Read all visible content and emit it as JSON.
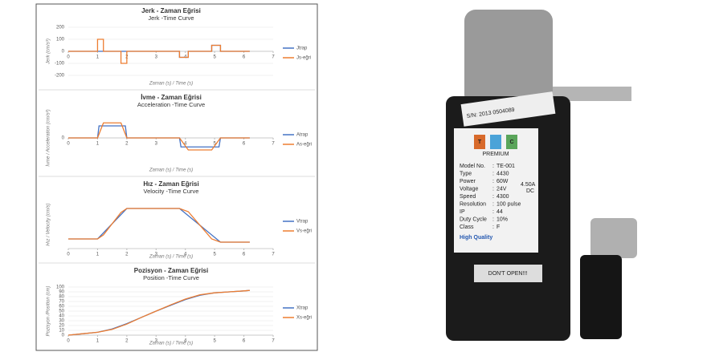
{
  "chart_data": [
    {
      "type": "line",
      "title": "Jerk - Zaman Eğrisi",
      "subtitle": "Jerk -Time Curve",
      "y_label": "Jerk (cm/s³)",
      "x_label": "Zaman (s) / Time (s)",
      "xlim": [
        0,
        7
      ],
      "xticks": [
        0,
        1,
        2,
        3,
        4,
        5,
        6,
        7
      ],
      "ylim": [
        -200,
        200
      ],
      "yticks": [
        -200,
        -100,
        0,
        100,
        200
      ],
      "series": [
        {
          "name": "Jtrap",
          "color": "#4472c4",
          "x": [
            0,
            3.8,
            3.8,
            4.1,
            4.1,
            4.9,
            4.9,
            5.2,
            5.2,
            6.2
          ],
          "values": [
            0,
            0,
            -50,
            -50,
            0,
            0,
            50,
            50,
            0,
            0
          ]
        },
        {
          "name": "Js-eğri",
          "color": "#ed7d31",
          "x": [
            0,
            1,
            1,
            1.2,
            1.2,
            1.8,
            1.8,
            2,
            2,
            3.8,
            3.8,
            4.1,
            4.1,
            4.9,
            4.9,
            5.2,
            5.2,
            6.2
          ],
          "values": [
            0,
            0,
            100,
            100,
            0,
            0,
            -100,
            -100,
            0,
            0,
            -50,
            -50,
            0,
            0,
            50,
            50,
            0,
            0
          ]
        }
      ]
    },
    {
      "type": "line",
      "title": "İvme - Zaman Eğrisi",
      "subtitle": "Acceleration -Time Curve",
      "y_label": "İvme / Acceleration (cm/s²)",
      "x_label": "Zaman (s) / Time (s)",
      "xlim": [
        0,
        7
      ],
      "xticks": [
        0,
        1,
        2,
        3,
        4,
        5,
        6,
        7
      ],
      "ylim": [
        -40,
        40
      ],
      "yticks": [
        0
      ],
      "series": [
        {
          "name": "Atrap",
          "color": "#4472c4",
          "x": [
            0,
            1,
            1.05,
            1.95,
            2,
            3.8,
            3.85,
            5.15,
            5.2,
            6.2
          ],
          "values": [
            0,
            0,
            20,
            20,
            0,
            0,
            -15,
            -15,
            0,
            0
          ]
        },
        {
          "name": "As-eğri",
          "color": "#ed7d31",
          "x": [
            0,
            1,
            1.2,
            1.8,
            2,
            3.8,
            4.1,
            4.9,
            5.2,
            6.2
          ],
          "values": [
            0,
            0,
            25,
            25,
            0,
            0,
            -20,
            -20,
            0,
            0
          ]
        }
      ]
    },
    {
      "type": "line",
      "title": "Hız - Zaman Eğrisi",
      "subtitle": "Velocity -Time Curve",
      "y_label": "Hız / Velocity (cm/s)",
      "x_label": "Zaman (s) / Time (s)",
      "xlim": [
        0,
        7
      ],
      "xticks": [
        0,
        1,
        2,
        3,
        4,
        5,
        6,
        7
      ],
      "ylim": [
        0,
        30
      ],
      "yticks": [],
      "series": [
        {
          "name": "Vtrap",
          "color": "#4472c4",
          "x": [
            0,
            1,
            2,
            3.8,
            5.2,
            6.2
          ],
          "values": [
            6,
            6,
            25,
            25,
            4,
            4
          ]
        },
        {
          "name": "Vs-eğri",
          "color": "#ed7d31",
          "x": [
            0,
            1,
            1.2,
            1.8,
            2,
            3.8,
            4.1,
            4.9,
            5.2,
            6.2
          ],
          "values": [
            6,
            6,
            8.5,
            22.5,
            25,
            25,
            23,
            6,
            4,
            4
          ]
        }
      ]
    },
    {
      "type": "line",
      "title": "Pozisyon - Zaman Eğrisi",
      "subtitle": "Position -Time Curve",
      "y_label": "Pozisyon /Position (cm)",
      "x_label": "Zaman (s) / Time (s)",
      "xlim": [
        0,
        7
      ],
      "xticks": [
        0,
        1,
        2,
        3,
        4,
        5,
        6,
        7
      ],
      "ylim": [
        0,
        100
      ],
      "yticks": [
        0,
        10,
        20,
        30,
        40,
        50,
        60,
        70,
        80,
        90,
        100
      ],
      "series": [
        {
          "name": "Xtrap",
          "color": "#4472c4",
          "x": [
            0,
            0.5,
            1,
            1.5,
            2,
            2.5,
            3,
            3.5,
            4,
            4.5,
            5,
            5.5,
            6,
            6.2
          ],
          "values": [
            0,
            3,
            6,
            13,
            24,
            37,
            50,
            62,
            74,
            83,
            88,
            90,
            92,
            93
          ]
        },
        {
          "name": "Xs-eğri",
          "color": "#ed7d31",
          "x": [
            0,
            0.5,
            1,
            1.5,
            2,
            2.5,
            3,
            3.5,
            4,
            4.5,
            5,
            5.5,
            6,
            6.2
          ],
          "values": [
            0,
            3,
            6,
            12,
            23,
            37,
            50,
            63,
            75,
            84,
            88,
            90,
            92,
            93
          ]
        }
      ]
    }
  ],
  "photo": {
    "serial": "S/N: 2013 0504089",
    "logo_left": "T",
    "logo_right": "C",
    "brand": "PREMIUM",
    "spec_rows": [
      [
        "Model No.",
        ":",
        "TE-001"
      ],
      [
        "Type",
        ":",
        "4430"
      ],
      [
        "Power",
        ":",
        "60W"
      ],
      [
        "Voltage",
        ":",
        "24V"
      ],
      [
        "Speed",
        ":",
        "4300"
      ],
      [
        "Resolution",
        ":",
        "100 pulse"
      ],
      [
        "IP",
        ":",
        "44"
      ],
      [
        "Duty Cycle",
        ":",
        "10%"
      ],
      [
        "Class",
        ":",
        "F"
      ]
    ],
    "current": "4.50A",
    "current_type": "DC",
    "quality": "High Quality",
    "warning": "DON'T OPEN!!!"
  }
}
